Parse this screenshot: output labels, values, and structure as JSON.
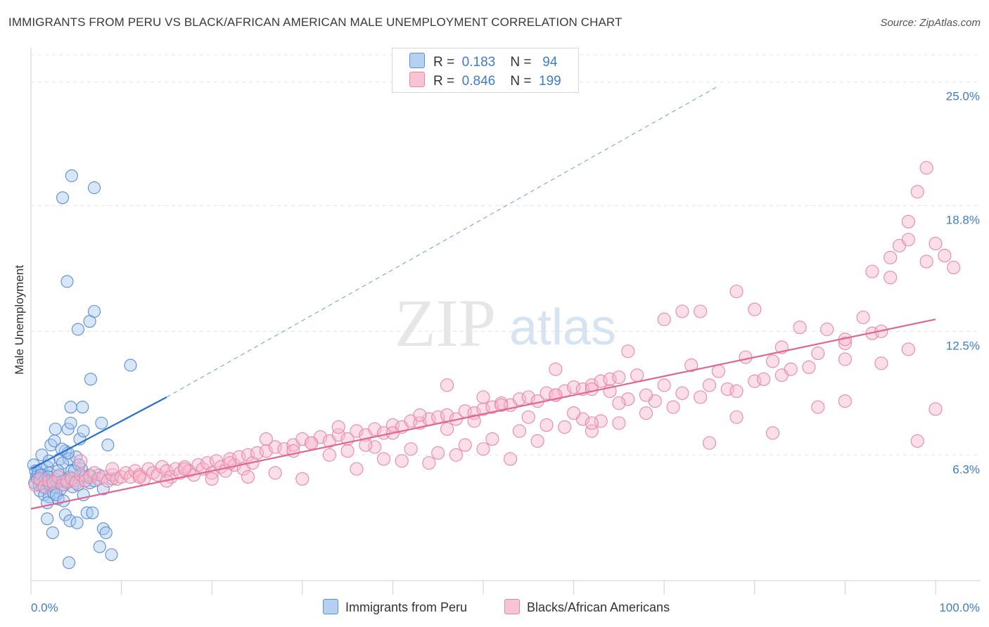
{
  "header": {
    "title": "IMMIGRANTS FROM PERU VS BLACK/AFRICAN AMERICAN MALE UNEMPLOYMENT CORRELATION CHART",
    "source": "Source: ZipAtlas.com"
  },
  "watermark": {
    "zip": "ZIP",
    "atlas": "atlas"
  },
  "legend_top": {
    "rows": [
      {
        "r_label": "R =",
        "r_value": "0.183",
        "n_label": "N =",
        "n_value": "94"
      },
      {
        "r_label": "R =",
        "r_value": "0.846",
        "n_label": "N =",
        "n_value": "199"
      }
    ]
  },
  "chart_data": {
    "type": "scatter",
    "title": "IMMIGRANTS FROM PERU VS BLACK/AFRICAN AMERICAN MALE UNEMPLOYMENT CORRELATION CHART",
    "xlabel": "",
    "ylabel": "Male Unemployment",
    "xlim": [
      0,
      100
    ],
    "ylim": [
      0,
      27
    ],
    "x_tick_labels": [
      "0.0%",
      "100.0%"
    ],
    "y_ticks": [
      6.3,
      12.5,
      18.8,
      25.0
    ],
    "y_tick_labels": [
      "6.3%",
      "12.5%",
      "18.8%",
      "25.0%"
    ],
    "grid": true,
    "legend_position": "top-center",
    "colors": {
      "blue_fill": "#a9c7ef",
      "blue_stroke": "#5b8fd6",
      "blue_line": "#2a6fcf",
      "pink_fill": "#f6b7cb",
      "pink_stroke": "#e887a6",
      "pink_line": "#e06690",
      "axis_text": "#3d7cc9"
    },
    "series": [
      {
        "name": "Immigrants from Peru",
        "r": 0.183,
        "n": 94,
        "trend": {
          "x0": 0,
          "y0": 5.6,
          "x1": 15,
          "y1": 9.2,
          "dashed_to_x": 76,
          "dashed_to_y": 24.8
        },
        "points": [
          [
            0.3,
            5.8
          ],
          [
            0.5,
            5.5
          ],
          [
            0.6,
            5.2
          ],
          [
            0.8,
            5.4
          ],
          [
            1.0,
            5.0
          ],
          [
            1.2,
            5.6
          ],
          [
            1.4,
            5.3
          ],
          [
            1.6,
            5.1
          ],
          [
            1.8,
            5.7
          ],
          [
            2.0,
            5.4
          ],
          [
            0.4,
            4.9
          ],
          [
            0.7,
            5.1
          ],
          [
            0.9,
            4.8
          ],
          [
            1.1,
            5.3
          ],
          [
            1.3,
            4.7
          ],
          [
            1.5,
            5.0
          ],
          [
            1.7,
            4.6
          ],
          [
            1.9,
            5.2
          ],
          [
            2.1,
            4.8
          ],
          [
            2.3,
            5.0
          ],
          [
            2.5,
            4.7
          ],
          [
            2.7,
            5.1
          ],
          [
            2.9,
            4.9
          ],
          [
            3.1,
            5.3
          ],
          [
            3.3,
            4.6
          ],
          [
            3.5,
            5.0
          ],
          [
            3.7,
            4.8
          ],
          [
            4.0,
            4.9
          ],
          [
            4.3,
            5.2
          ],
          [
            4.6,
            4.7
          ],
          [
            4.9,
            5.0
          ],
          [
            5.2,
            4.8
          ],
          [
            1.0,
            4.5
          ],
          [
            1.5,
            4.3
          ],
          [
            2.0,
            4.2
          ],
          [
            2.5,
            4.4
          ],
          [
            3.0,
            4.1
          ],
          [
            1.8,
            3.9
          ],
          [
            2.8,
            4.3
          ],
          [
            3.6,
            4.0
          ],
          [
            1.2,
            6.3
          ],
          [
            2.2,
            6.8
          ],
          [
            3.2,
            6.1
          ],
          [
            2.6,
            7.0
          ],
          [
            3.8,
            6.5
          ],
          [
            4.2,
            6.1
          ],
          [
            2.7,
            7.6
          ],
          [
            4.1,
            7.6
          ],
          [
            4.4,
            7.9
          ],
          [
            5.4,
            7.1
          ],
          [
            5.0,
            6.2
          ],
          [
            5.6,
            5.6
          ],
          [
            4.5,
            5.5
          ],
          [
            6.0,
            5.2
          ],
          [
            6.5,
            4.9
          ],
          [
            7.0,
            5.0
          ],
          [
            8.0,
            4.6
          ],
          [
            7.5,
            5.3
          ],
          [
            9.0,
            5.1
          ],
          [
            5.8,
            4.3
          ],
          [
            2.0,
            6.0
          ],
          [
            3.5,
            5.9
          ],
          [
            4.8,
            5.5
          ],
          [
            3.0,
            5.5
          ],
          [
            4.1,
            6.4
          ],
          [
            5.3,
            5.8
          ],
          [
            6.0,
            5.0
          ],
          [
            5.8,
            7.5
          ],
          [
            6.5,
            5.3
          ],
          [
            8.5,
            6.8
          ],
          [
            3.4,
            6.6
          ],
          [
            4.4,
            8.7
          ],
          [
            5.7,
            8.7
          ],
          [
            7.8,
            7.9
          ],
          [
            6.6,
            10.1
          ],
          [
            6.5,
            13.0
          ],
          [
            7.0,
            13.5
          ],
          [
            5.2,
            12.6
          ],
          [
            4.0,
            15.0
          ],
          [
            11.0,
            10.8
          ],
          [
            3.5,
            19.2
          ],
          [
            4.5,
            20.3
          ],
          [
            7.0,
            19.7
          ],
          [
            1.8,
            3.1
          ],
          [
            2.4,
            2.4
          ],
          [
            3.8,
            3.3
          ],
          [
            4.3,
            3.0
          ],
          [
            5.1,
            2.9
          ],
          [
            6.2,
            3.4
          ],
          [
            6.8,
            3.4
          ],
          [
            8.0,
            2.6
          ],
          [
            8.3,
            2.4
          ],
          [
            7.6,
            1.7
          ],
          [
            8.9,
            1.3
          ],
          [
            4.2,
            0.9
          ]
        ]
      },
      {
        "name": "Blacks/African Americans",
        "r": 0.846,
        "n": 199,
        "trend": {
          "x0": 0,
          "y0": 3.6,
          "x1": 100,
          "y1": 13.1
        },
        "points": [
          [
            0.5,
            4.8
          ],
          [
            1,
            5.1
          ],
          [
            1.5,
            4.7
          ],
          [
            2,
            5.0
          ],
          [
            2.5,
            4.9
          ],
          [
            3,
            5.2
          ],
          [
            3.5,
            4.8
          ],
          [
            4,
            5.0
          ],
          [
            4.5,
            5.1
          ],
          [
            5,
            4.9
          ],
          [
            5.5,
            5.3
          ],
          [
            6,
            5.0
          ],
          [
            6.5,
            5.2
          ],
          [
            7,
            5.4
          ],
          [
            7.5,
            5.1
          ],
          [
            8,
            5.2
          ],
          [
            8.5,
            5.0
          ],
          [
            9,
            5.3
          ],
          [
            9.5,
            5.1
          ],
          [
            10,
            5.2
          ],
          [
            10.5,
            5.4
          ],
          [
            11,
            5.2
          ],
          [
            11.5,
            5.5
          ],
          [
            12,
            5.3
          ],
          [
            12.5,
            5.1
          ],
          [
            13,
            5.6
          ],
          [
            13.5,
            5.4
          ],
          [
            14,
            5.3
          ],
          [
            14.5,
            5.7
          ],
          [
            15,
            5.5
          ],
          [
            15.5,
            5.2
          ],
          [
            16,
            5.6
          ],
          [
            16.5,
            5.4
          ],
          [
            17,
            5.7
          ],
          [
            17.5,
            5.5
          ],
          [
            18,
            5.3
          ],
          [
            18.5,
            5.8
          ],
          [
            19,
            5.6
          ],
          [
            19.5,
            5.9
          ],
          [
            20,
            5.4
          ],
          [
            20.5,
            6.0
          ],
          [
            21,
            5.7
          ],
          [
            21.5,
            5.5
          ],
          [
            22,
            6.1
          ],
          [
            22.5,
            5.8
          ],
          [
            23,
            6.2
          ],
          [
            23.5,
            5.6
          ],
          [
            24,
            6.3
          ],
          [
            24.5,
            5.9
          ],
          [
            25,
            6.4
          ],
          [
            26,
            6.5
          ],
          [
            27,
            6.7
          ],
          [
            28,
            6.6
          ],
          [
            29,
            6.8
          ],
          [
            30,
            7.1
          ],
          [
            31,
            6.9
          ],
          [
            32,
            7.2
          ],
          [
            33,
            7.0
          ],
          [
            34,
            7.3
          ],
          [
            35,
            7.1
          ],
          [
            36,
            7.5
          ],
          [
            37,
            7.3
          ],
          [
            38,
            7.6
          ],
          [
            39,
            7.4
          ],
          [
            40,
            7.8
          ],
          [
            41,
            7.7
          ],
          [
            42,
            8.0
          ],
          [
            43,
            7.9
          ],
          [
            44,
            8.1
          ],
          [
            45,
            8.2
          ],
          [
            46,
            8.3
          ],
          [
            47,
            8.1
          ],
          [
            48,
            8.5
          ],
          [
            49,
            8.4
          ],
          [
            50,
            8.6
          ],
          [
            51,
            8.7
          ],
          [
            52,
            8.9
          ],
          [
            53,
            8.8
          ],
          [
            54,
            9.1
          ],
          [
            55,
            9.2
          ],
          [
            56,
            9.0
          ],
          [
            57,
            9.4
          ],
          [
            58,
            9.3
          ],
          [
            59,
            9.5
          ],
          [
            60,
            9.7
          ],
          [
            61,
            9.6
          ],
          [
            62,
            9.8
          ],
          [
            63,
            10.0
          ],
          [
            64,
            10.1
          ],
          [
            65,
            10.2
          ],
          [
            5.5,
            6.0
          ],
          [
            9,
            5.6
          ],
          [
            12,
            5.2
          ],
          [
            15,
            5.0
          ],
          [
            17,
            5.6
          ],
          [
            20,
            5.1
          ],
          [
            22,
            5.9
          ],
          [
            24,
            5.2
          ],
          [
            27,
            5.4
          ],
          [
            30,
            5.1
          ],
          [
            33,
            6.3
          ],
          [
            36,
            5.6
          ],
          [
            38,
            6.7
          ],
          [
            41,
            6.0
          ],
          [
            44,
            5.9
          ],
          [
            47,
            6.3
          ],
          [
            50,
            6.6
          ],
          [
            53,
            6.1
          ],
          [
            56,
            7.0
          ],
          [
            59,
            7.7
          ],
          [
            62,
            7.5
          ],
          [
            65,
            7.9
          ],
          [
            68,
            8.4
          ],
          [
            71,
            8.7
          ],
          [
            74,
            9.2
          ],
          [
            77,
            9.6
          ],
          [
            80,
            10.0
          ],
          [
            83,
            10.3
          ],
          [
            86,
            10.7
          ],
          [
            90,
            11.1
          ],
          [
            26,
            7.1
          ],
          [
            29,
            6.5
          ],
          [
            31,
            6.9
          ],
          [
            34,
            7.7
          ],
          [
            37,
            6.8
          ],
          [
            40,
            7.4
          ],
          [
            43,
            8.3
          ],
          [
            46,
            7.6
          ],
          [
            49,
            8.0
          ],
          [
            52,
            8.8
          ],
          [
            55,
            8.2
          ],
          [
            58,
            9.3
          ],
          [
            61,
            8.1
          ],
          [
            64,
            9.5
          ],
          [
            67,
            10.3
          ],
          [
            70,
            9.8
          ],
          [
            73,
            10.8
          ],
          [
            76,
            10.5
          ],
          [
            79,
            11.2
          ],
          [
            82,
            11.0
          ],
          [
            35,
            6.5
          ],
          [
            39,
            6.1
          ],
          [
            42,
            6.6
          ],
          [
            45,
            6.4
          ],
          [
            48,
            6.8
          ],
          [
            51,
            7.1
          ],
          [
            54,
            7.5
          ],
          [
            57,
            7.8
          ],
          [
            60,
            8.4
          ],
          [
            63,
            8.0
          ],
          [
            66,
            9.1
          ],
          [
            69,
            9.0
          ],
          [
            72,
            9.4
          ],
          [
            75,
            9.8
          ],
          [
            78,
            9.5
          ],
          [
            81,
            10.1
          ],
          [
            84,
            10.6
          ],
          [
            87,
            11.4
          ],
          [
            90,
            11.9
          ],
          [
            93,
            12.4
          ],
          [
            46,
            9.8
          ],
          [
            50,
            9.2
          ],
          [
            58,
            10.6
          ],
          [
            62,
            9.6
          ],
          [
            66,
            11.5
          ],
          [
            70,
            13.1
          ],
          [
            72,
            13.5
          ],
          [
            74,
            13.5
          ],
          [
            78,
            14.5
          ],
          [
            80,
            13.6
          ],
          [
            83,
            11.7
          ],
          [
            85,
            12.7
          ],
          [
            88,
            12.6
          ],
          [
            90,
            12.1
          ],
          [
            92,
            13.2
          ],
          [
            94,
            12.5
          ],
          [
            95,
            15.2
          ],
          [
            96,
            16.8
          ],
          [
            97,
            18.0
          ],
          [
            98,
            19.5
          ],
          [
            99,
            20.7
          ],
          [
            93,
            15.5
          ],
          [
            95,
            16.2
          ],
          [
            97,
            17.1
          ],
          [
            99,
            16.0
          ],
          [
            100,
            16.9
          ],
          [
            101,
            16.3
          ],
          [
            102,
            15.7
          ],
          [
            100,
            8.6
          ],
          [
            98,
            7.0
          ],
          [
            90,
            9.0
          ],
          [
            87,
            8.7
          ],
          [
            82,
            7.4
          ],
          [
            78,
            8.2
          ],
          [
            75,
            6.9
          ],
          [
            68,
            9.3
          ],
          [
            65,
            8.9
          ],
          [
            62,
            7.9
          ],
          [
            97,
            11.6
          ],
          [
            94,
            10.9
          ]
        ]
      }
    ]
  },
  "legend_bottom": {
    "items": [
      {
        "label": "Immigrants from Peru"
      },
      {
        "label": "Blacks/African Americans"
      }
    ]
  }
}
